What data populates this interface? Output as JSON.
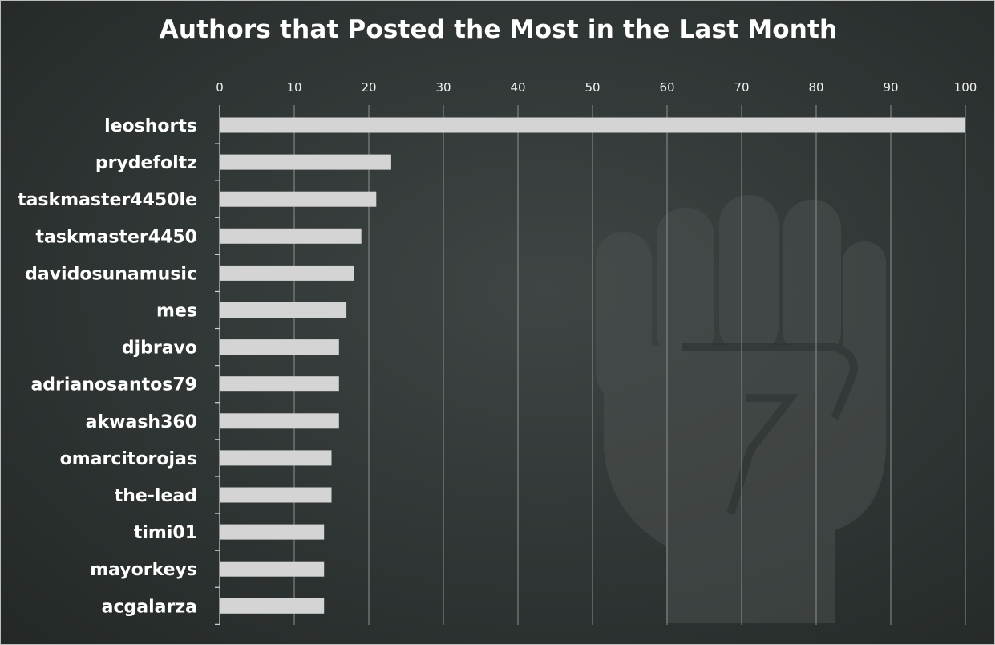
{
  "chart_data": {
    "type": "bar",
    "orientation": "horizontal",
    "title": "Authors that Posted the Most in the Last Month",
    "xlabel": "",
    "ylabel": "",
    "xlim": [
      0,
      100
    ],
    "xticks": [
      0,
      10,
      20,
      30,
      40,
      50,
      60,
      70,
      80,
      90,
      100
    ],
    "x_axis_position": "top",
    "grid": true,
    "categories": [
      "leoshorts",
      "prydefoltz",
      "taskmaster4450le",
      "taskmaster4450",
      "davidosunamusic",
      "mes",
      "djbravo",
      "adrianosantos79",
      "akwash360",
      "omarcitorojas",
      "the-lead",
      "timi01",
      "mayorkeys",
      "acgalarza"
    ],
    "values": [
      100,
      23,
      21,
      19,
      18,
      17,
      16,
      16,
      16,
      15,
      15,
      14,
      14,
      14
    ]
  },
  "colors": {
    "bar": "#d4d4d4",
    "text": "#ffffff",
    "background": "#323837"
  },
  "watermark": {
    "icon": "raised-fist-icon"
  }
}
